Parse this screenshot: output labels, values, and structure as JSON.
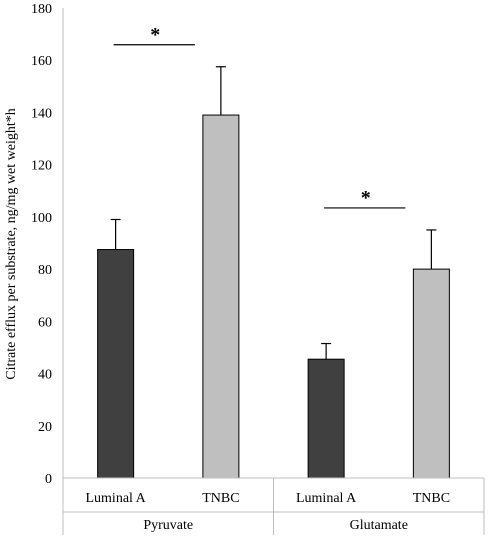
{
  "chart_data": {
    "type": "bar",
    "ylabel": "Citrate efflux per substrate, ng/mg wet weight*h",
    "xlabel": "",
    "ylim": [
      0,
      180
    ],
    "y_ticks": [
      0,
      20,
      40,
      60,
      80,
      100,
      120,
      140,
      160,
      180
    ],
    "grid": false,
    "legend": "none",
    "groups": [
      {
        "name": "Pyruvate",
        "bars": [
          {
            "label": "Luminal A",
            "value": 87.5,
            "error": 11.5,
            "color": "#404040"
          },
          {
            "label": "TNBC",
            "value": 139,
            "error": 18.5,
            "color": "#bfbfbf"
          }
        ],
        "significance": "*"
      },
      {
        "name": "Glutamate",
        "bars": [
          {
            "label": "Luminal A",
            "value": 45.5,
            "error": 6,
            "color": "#404040"
          },
          {
            "label": "TNBC",
            "value": 80,
            "error": 15,
            "color": "#bfbfbf"
          }
        ],
        "significance": "*"
      }
    ]
  }
}
